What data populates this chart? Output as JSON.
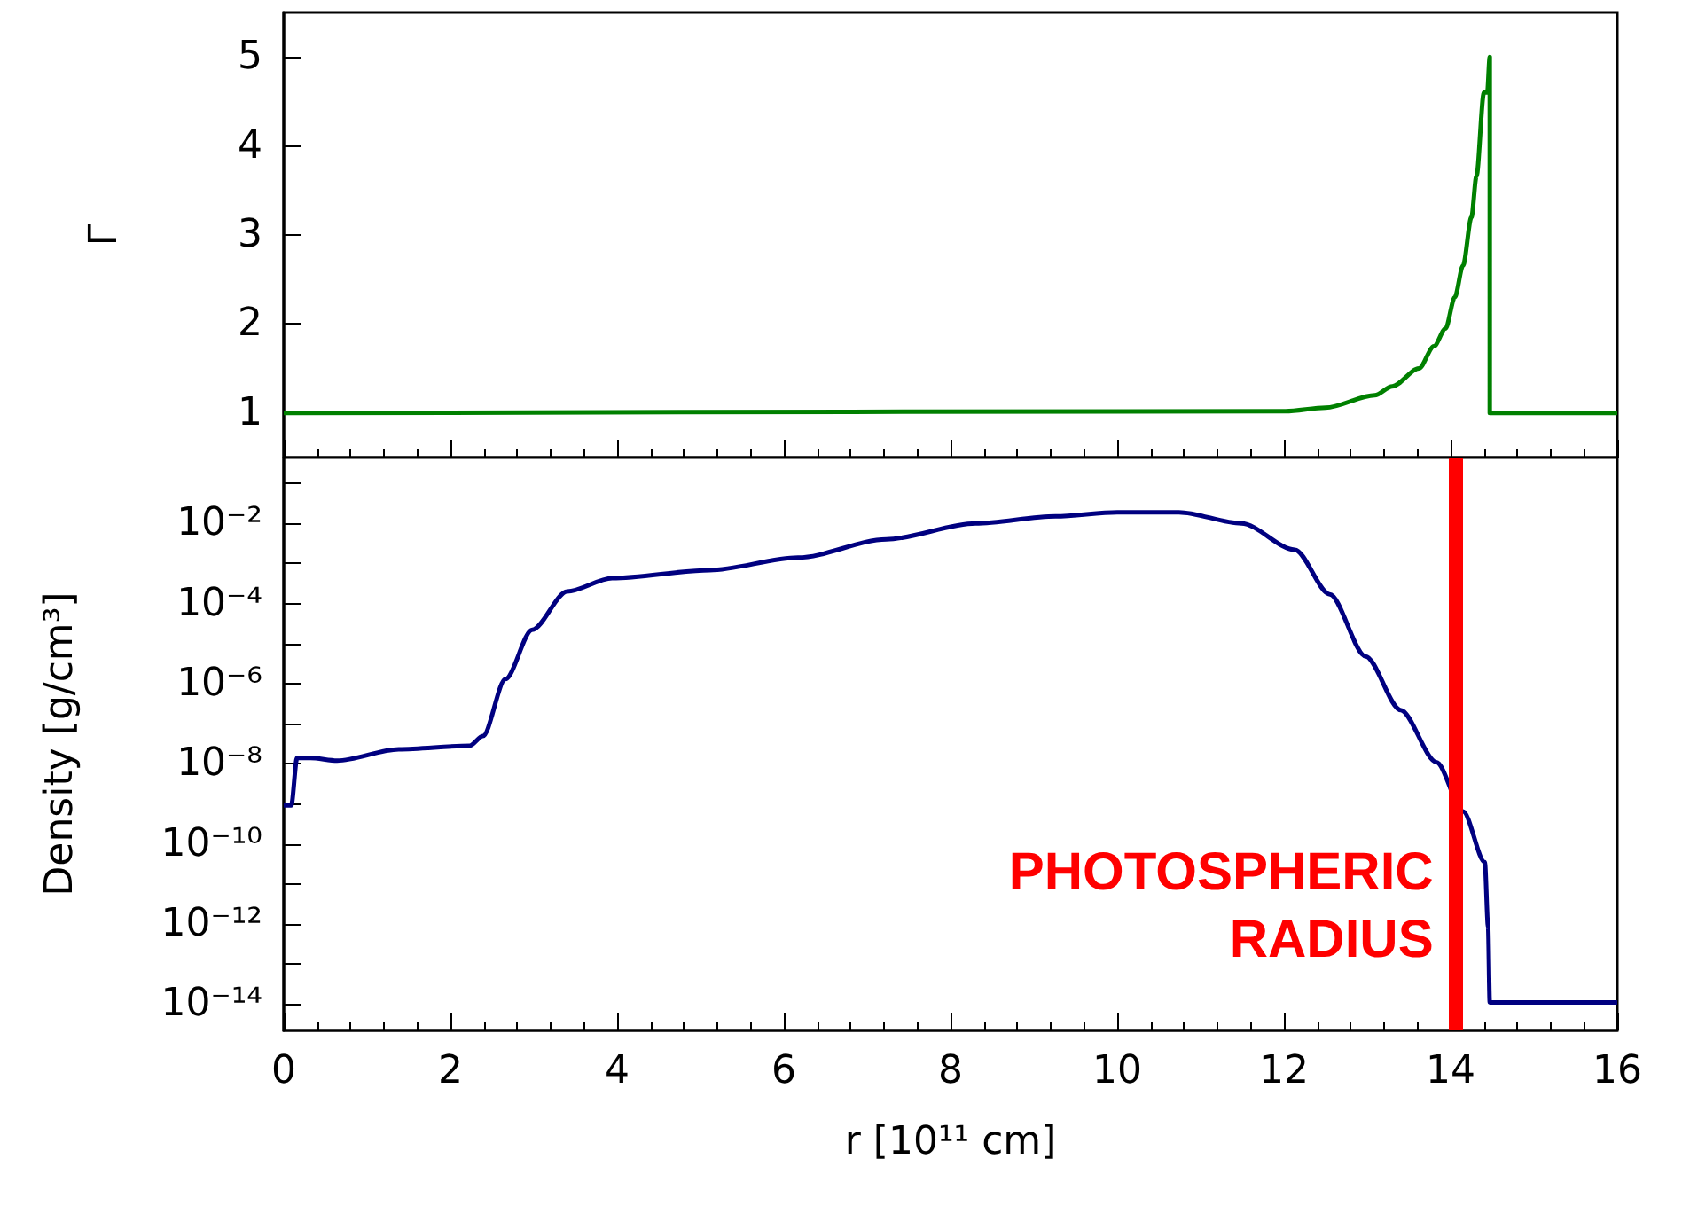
{
  "chart_data": [
    {
      "type": "line",
      "ylabel": "Γ",
      "x": [
        0,
        12.02,
        12.5,
        13.09,
        13.3,
        13.62,
        13.8,
        13.94,
        14.05,
        14.15,
        14.25,
        14.31,
        14.4,
        14.44,
        14.47,
        14.47,
        16
      ],
      "series": [
        {
          "color": "#008000",
          "values": [
            1,
            1.02,
            1.06,
            1.2,
            1.3,
            1.5,
            1.75,
            1.95,
            2.3,
            2.66,
            3.2,
            3.66,
            4.6,
            4.6,
            5.0,
            1,
            1
          ]
        }
      ],
      "xlim": [
        0,
        16
      ],
      "xticks": [
        0,
        2,
        4,
        6,
        8,
        10,
        12,
        14,
        16
      ],
      "ylim": [
        0.5,
        5.5
      ],
      "yticks": [
        1,
        2,
        3,
        4,
        5
      ],
      "grid": false,
      "tick_labels": "y"
    },
    {
      "type": "line",
      "xlabel": "r [10¹¹ cm]",
      "ylabel": "Density [g/cm³]",
      "log": "y",
      "x": [
        0,
        0.09,
        0.16,
        0.32,
        0.64,
        1.38,
        2.23,
        2.39,
        2.66,
        2.98,
        3.4,
        3.94,
        5.11,
        6.17,
        7.23,
        8.3,
        9.26,
        10.0,
        10.74,
        11.49,
        12.13,
        12.55,
        12.98,
        13.4,
        13.83,
        14.15,
        14.41,
        14.45,
        14.47,
        16
      ],
      "series": [
        {
          "color": "#000080",
          "values": [
            9.1e-10,
            9.1e-10,
            1.4e-08,
            1.4e-08,
            1.2e-08,
            2.3e-08,
            2.8e-08,
            4.9e-08,
            1.3e-06,
            2.2e-05,
            0.0002,
            0.00043,
            0.00068,
            0.0014,
            0.004,
            0.01,
            0.015,
            0.019,
            0.019,
            0.01,
            0.0022,
            0.00017,
            4.8e-06,
            2.2e-07,
            1.1e-08,
            6.5e-10,
            3.5e-11,
            8.5e-13,
            1.1e-14,
            1.1e-14
          ]
        }
      ],
      "xlim": [
        0,
        16
      ],
      "xticks": [
        0,
        2,
        4,
        6,
        8,
        10,
        12,
        14,
        16
      ],
      "ylim": [
        2.2e-15,
        0.44
      ],
      "yticks": [
        {
          "value": 1e-14,
          "label": "10⁻¹⁴"
        },
        {
          "value": 1e-13,
          "label": null
        },
        {
          "value": 1e-12,
          "label": "10⁻¹²"
        },
        {
          "value": 1e-11,
          "label": null
        },
        {
          "value": 1e-10,
          "label": "10⁻¹⁰"
        },
        {
          "value": 1e-09,
          "label": null
        },
        {
          "value": 1e-08,
          "label": "10⁻⁸"
        },
        {
          "value": 1e-07,
          "label": null
        },
        {
          "value": 1e-06,
          "label": "10⁻⁶"
        },
        {
          "value": 1e-05,
          "label": null
        },
        {
          "value": 0.0001,
          "label": "10⁻⁴"
        },
        {
          "value": 0.001,
          "label": null
        },
        {
          "value": 0.01,
          "label": "10⁻²"
        },
        {
          "value": 0.1,
          "label": null
        }
      ],
      "ref_lines": [
        {
          "axis": "x",
          "value": 14.05,
          "label": "PHOTOSPHERIC RADIUS",
          "color": "#ff0000"
        }
      ],
      "grid": false
    }
  ]
}
